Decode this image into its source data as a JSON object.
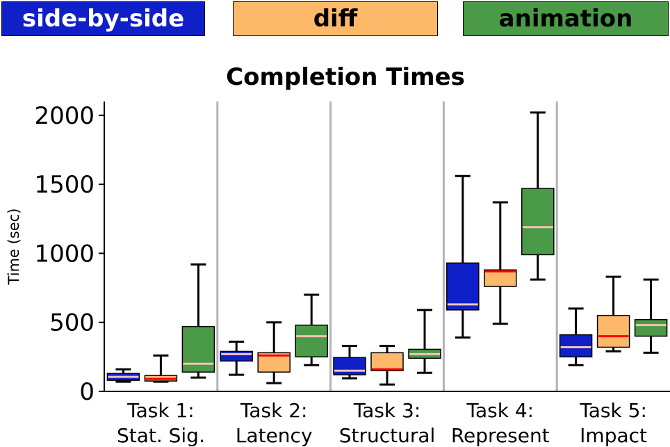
{
  "legend": [
    {
      "label": "side-by-side",
      "color": "#1020c8"
    },
    {
      "label": "diff",
      "color": "#fdb96a"
    },
    {
      "label": "animation",
      "color": "#4a9a48"
    }
  ],
  "chart_data": {
    "type": "box",
    "title": "Completion Times",
    "ylabel": "Time (sec)",
    "xlabel": "",
    "ylim": [
      0,
      2100
    ],
    "yticks": [
      0,
      500,
      1000,
      1500,
      2000
    ],
    "grid": false,
    "legend_position": "top",
    "categories": [
      [
        "Task 1:",
        "Stat. Sig."
      ],
      [
        "Task 2:",
        "Latency"
      ],
      [
        "Task 3:",
        "Structural"
      ],
      [
        "Task 4:",
        "Represent"
      ],
      [
        "Task 5:",
        "Impact"
      ]
    ],
    "series": [
      {
        "name": "side-by-side",
        "color": "#1020c8",
        "median_color": "#f2c4b4",
        "boxes": [
          {
            "min": 70,
            "q1": 80,
            "median": 105,
            "q3": 130,
            "max": 160
          },
          {
            "min": 120,
            "q1": 220,
            "median": 270,
            "q3": 290,
            "max": 360
          },
          {
            "min": 95,
            "q1": 120,
            "median": 150,
            "q3": 245,
            "max": 330
          },
          {
            "min": 390,
            "q1": 590,
            "median": 630,
            "q3": 930,
            "max": 1560
          },
          {
            "min": 190,
            "q1": 250,
            "median": 320,
            "q3": 410,
            "max": 600
          }
        ]
      },
      {
        "name": "diff",
        "color": "#fdb96a",
        "median_color": "#ff0000",
        "boxes": [
          {
            "min": 70,
            "q1": 75,
            "median": 90,
            "q3": 115,
            "max": 260
          },
          {
            "min": 60,
            "q1": 140,
            "median": 260,
            "q3": 280,
            "max": 500
          },
          {
            "min": 50,
            "q1": 150,
            "median": 160,
            "q3": 280,
            "max": 330
          },
          {
            "min": 490,
            "q1": 760,
            "median": 870,
            "q3": 880,
            "max": 1370
          },
          {
            "min": 290,
            "q1": 320,
            "median": 400,
            "q3": 550,
            "max": 830
          }
        ]
      },
      {
        "name": "animation",
        "color": "#4a9a48",
        "median_color": "#f2c4b4",
        "boxes": [
          {
            "min": 100,
            "q1": 140,
            "median": 200,
            "q3": 470,
            "max": 920
          },
          {
            "min": 190,
            "q1": 250,
            "median": 400,
            "q3": 480,
            "max": 700
          },
          {
            "min": 135,
            "q1": 240,
            "median": 270,
            "q3": 305,
            "max": 590
          },
          {
            "min": 810,
            "q1": 990,
            "median": 1190,
            "q3": 1470,
            "max": 2020
          },
          {
            "min": 280,
            "q1": 400,
            "median": 480,
            "q3": 520,
            "max": 810
          }
        ]
      }
    ]
  }
}
